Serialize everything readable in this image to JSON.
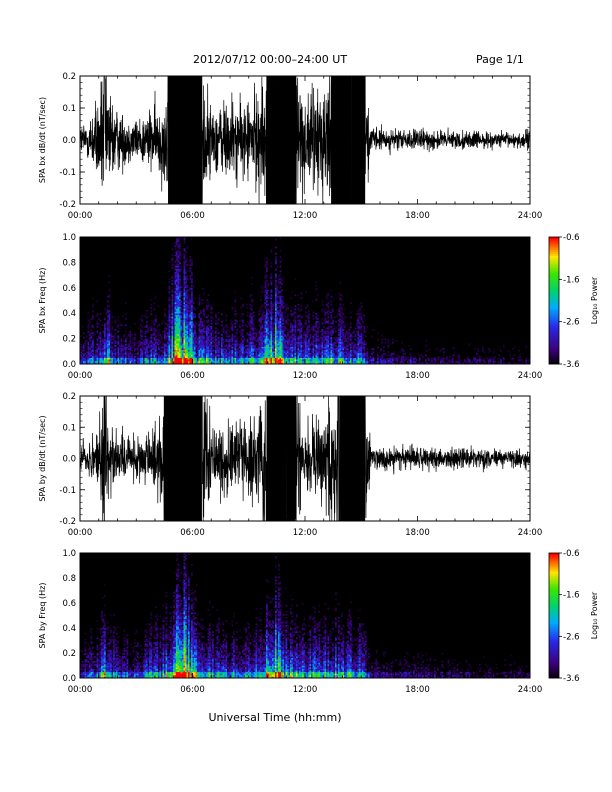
{
  "header": {
    "title": "2012/07/12  00:00–24:00 UT",
    "page": "Page 1/1"
  },
  "xlabel": "Universal Time (hh:mm)",
  "chart_data": [
    {
      "type": "line",
      "ylabel": "SPA bx dB/dt (nT/sec)",
      "xlim": [
        0,
        24
      ],
      "ylim": [
        -0.2,
        0.2
      ],
      "x_ticks": [
        "00:00",
        "06:00",
        "12:00",
        "18:00",
        "24:00"
      ],
      "y_ticks": [
        "-0.2",
        "-0.1",
        "0.0",
        "0.1",
        "0.2"
      ],
      "envelope": {
        "hours": [
          0,
          0.5,
          1,
          1.3,
          1.6,
          2,
          2.5,
          3,
          3.5,
          4,
          4.5,
          4.7,
          5.2,
          6.5,
          7,
          7.5,
          8,
          8.5,
          9,
          9.5,
          10,
          10.3,
          11,
          11.5,
          12,
          12.5,
          13,
          13.5,
          14,
          14.5,
          15.2,
          15.5,
          16,
          17,
          18,
          19,
          20,
          21,
          22,
          23,
          24
        ],
        "amplitude": [
          0.06,
          0.09,
          0.18,
          0.3,
          0.2,
          0.12,
          0.1,
          0.08,
          0.11,
          0.13,
          0.17,
          0.3,
          0.3,
          0.3,
          0.12,
          0.15,
          0.18,
          0.14,
          0.16,
          0.2,
          0.3,
          0.3,
          0.3,
          0.3,
          0.16,
          0.2,
          0.25,
          0.3,
          0.3,
          0.3,
          0.3,
          0.05,
          0.045,
          0.04,
          0.04,
          0.04,
          0.035,
          0.035,
          0.03,
          0.03,
          0.04
        ]
      }
    },
    {
      "type": "heatmap",
      "ylabel": "SPA bx Freq (Hz)",
      "xlim": [
        0,
        24
      ],
      "ylim": [
        0,
        1
      ],
      "x_ticks": [
        "00:00",
        "06:00",
        "12:00",
        "18:00",
        "24:00"
      ],
      "y_ticks": [
        "0.0",
        "0.2",
        "0.4",
        "0.6",
        "0.8",
        "1.0"
      ],
      "colorbar": {
        "label": "Log₁₀ Power",
        "range": [
          -3.6,
          -0.6
        ],
        "ticks": [
          "-0.6",
          "-1.6",
          "-2.6",
          "-3.6"
        ]
      },
      "activity": {
        "hours": [
          0,
          1,
          1.3,
          1.8,
          3,
          4.5,
          5.3,
          5.8,
          6.3,
          8,
          9.5,
          10,
          10.5,
          11,
          12,
          13,
          14,
          15,
          15.5,
          18,
          24
        ],
        "level": [
          0.3,
          0.45,
          0.7,
          0.45,
          0.35,
          0.55,
          0.95,
          0.85,
          0.55,
          0.45,
          0.55,
          0.75,
          0.85,
          0.6,
          0.5,
          0.55,
          0.55,
          0.5,
          0.25,
          0.2,
          0.15
        ]
      }
    },
    {
      "type": "line",
      "ylabel": "SPA by dB/dt (nT/sec)",
      "xlim": [
        0,
        24
      ],
      "ylim": [
        -0.2,
        0.2
      ],
      "x_ticks": [
        "00:00",
        "06:00",
        "12:00",
        "18:00",
        "24:00"
      ],
      "y_ticks": [
        "-0.2",
        "-0.1",
        "0.0",
        "0.1",
        "0.2"
      ],
      "envelope": {
        "hours": [
          0,
          0.5,
          1,
          1.3,
          1.6,
          2,
          2.5,
          3,
          3.5,
          4,
          4.5,
          4.7,
          5.2,
          6.5,
          7,
          7.5,
          8,
          8.5,
          9,
          9.5,
          10,
          10.3,
          11,
          11.5,
          12,
          12.5,
          13,
          13.5,
          14,
          14.5,
          15.2,
          15.5,
          16,
          17,
          18,
          19,
          20,
          21,
          22,
          23,
          24
        ],
        "amplitude": [
          0.05,
          0.08,
          0.16,
          0.3,
          0.18,
          0.1,
          0.09,
          0.08,
          0.1,
          0.12,
          0.3,
          0.3,
          0.3,
          0.3,
          0.12,
          0.14,
          0.16,
          0.13,
          0.15,
          0.18,
          0.3,
          0.3,
          0.3,
          0.3,
          0.15,
          0.18,
          0.22,
          0.28,
          0.3,
          0.3,
          0.3,
          0.06,
          0.05,
          0.045,
          0.045,
          0.045,
          0.04,
          0.04,
          0.035,
          0.035,
          0.04
        ]
      }
    },
    {
      "type": "heatmap",
      "ylabel": "SPA by Freq (Hz)",
      "xlim": [
        0,
        24
      ],
      "ylim": [
        0,
        1
      ],
      "x_ticks": [
        "00:00",
        "06:00",
        "12:00",
        "18:00",
        "24:00"
      ],
      "y_ticks": [
        "0.0",
        "0.2",
        "0.4",
        "0.6",
        "0.8",
        "1.0"
      ],
      "colorbar": {
        "label": "Log₁₀ Power",
        "range": [
          -3.6,
          -0.6
        ],
        "ticks": [
          "-0.6",
          "-1.6",
          "-2.6",
          "-3.6"
        ]
      },
      "activity": {
        "hours": [
          0,
          1,
          1.3,
          1.8,
          3,
          4.5,
          5.3,
          5.8,
          6.3,
          8,
          9.5,
          10,
          10.5,
          11,
          12,
          13,
          14,
          15,
          15.5,
          18,
          24
        ],
        "level": [
          0.3,
          0.45,
          0.7,
          0.45,
          0.35,
          0.55,
          0.95,
          0.85,
          0.55,
          0.45,
          0.55,
          0.8,
          0.85,
          0.6,
          0.5,
          0.55,
          0.55,
          0.5,
          0.25,
          0.2,
          0.15
        ]
      }
    }
  ]
}
